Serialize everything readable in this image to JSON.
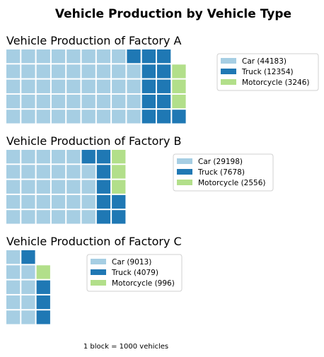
{
  "title": "Vehicle Production by Vehicle Type",
  "footnote": "1 block = 1000 vehicles",
  "colors": {
    "Car": "#a6cee3",
    "Truck": "#1f78b4",
    "Motorcycle": "#b2df8a"
  },
  "chart_data": [
    {
      "type": "waffle",
      "title": "Vehicle Production of Factory A",
      "rows": 5,
      "categories": [
        "Car",
        "Truck",
        "Motorcycle"
      ],
      "values": [
        44183,
        12354,
        3246
      ],
      "blocks": [
        44,
        12,
        3
      ],
      "legend": [
        "Car (44183)",
        "Truck (12354)",
        "Motorcycle (3246)"
      ],
      "legend_position": "right"
    },
    {
      "type": "waffle",
      "title": "Vehicle Production of Factory B",
      "rows": 5,
      "categories": [
        "Car",
        "Truck",
        "Motorcycle"
      ],
      "values": [
        29198,
        7678,
        2556
      ],
      "blocks": [
        29,
        8,
        3
      ],
      "legend": [
        "Car (29198)",
        "Truck (7678)",
        "Motorcycle (2556)"
      ],
      "legend_position": "right"
    },
    {
      "type": "waffle",
      "title": "Vehicle Production of Factory C",
      "rows": 5,
      "categories": [
        "Car",
        "Truck",
        "Motorcycle"
      ],
      "values": [
        9013,
        4079,
        996
      ],
      "blocks": [
        9,
        4,
        1
      ],
      "legend": [
        "Car (9013)",
        "Truck (4079)",
        "Motorcycle (996)"
      ],
      "legend_position": "right"
    }
  ]
}
